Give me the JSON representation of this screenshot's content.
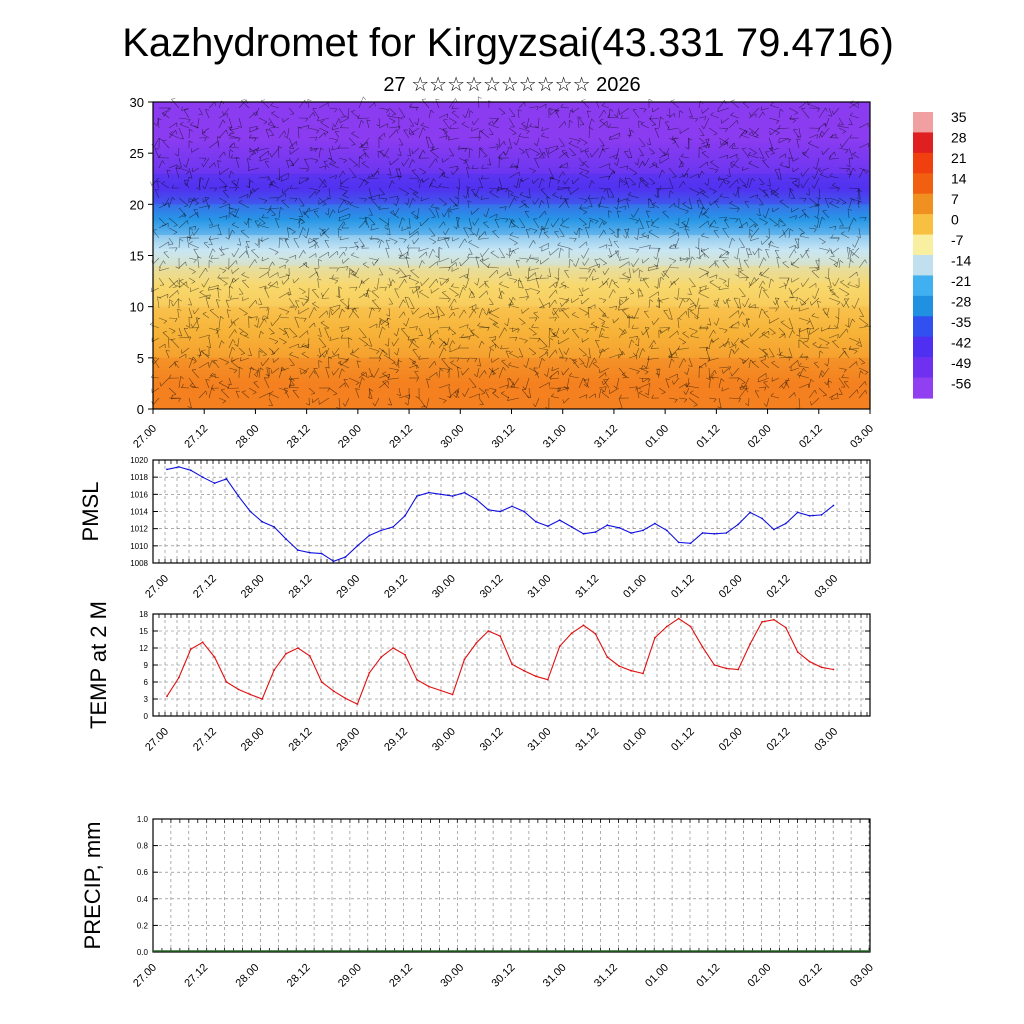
{
  "figure": {
    "title": "Kazhydromet for Kirgyzsai(43.331 79.4716)",
    "subtitle": "27 ☆☆☆☆☆☆☆☆☆☆ 2026"
  },
  "colorbar": {
    "labels": [
      "35",
      "28",
      "21",
      "14",
      "7",
      "0",
      "-7",
      "-14",
      "-21",
      "-28",
      "-35",
      "-42",
      "-49",
      "-56"
    ],
    "colors": [
      "#f0a0a0",
      "#e02020",
      "#f04010",
      "#f06010",
      "#f09020",
      "#f8c040",
      "#f8f0a0",
      "#c0e0f0",
      "#40b0f0",
      "#2090e0",
      "#3050f0",
      "#5030f0",
      "#7030f0",
      "#9040f0"
    ]
  },
  "chart_data": [
    {
      "type": "heatmap",
      "name": "cross-section",
      "title": "",
      "ylim": [
        0,
        30
      ],
      "yticks": [
        "0",
        "5",
        "10",
        "15",
        "20",
        "25",
        "30"
      ],
      "xticks": [
        "27.00",
        "27.12",
        "28.00",
        "28.12",
        "29.00",
        "29.12",
        "30.00",
        "30.12",
        "31.00",
        "31.12",
        "01.00",
        "01.12",
        "02.00",
        "02.12",
        "03.00"
      ],
      "bands": [
        {
          "y_from": 0,
          "y_to": 5,
          "value": 10
        },
        {
          "y_from": 5,
          "y_to": 10,
          "value": 3
        },
        {
          "y_from": 10,
          "y_to": 14,
          "value": -3
        },
        {
          "y_from": 14,
          "y_to": 17,
          "value": -14
        },
        {
          "y_from": 17,
          "y_to": 20,
          "value": -28
        },
        {
          "y_from": 20,
          "y_to": 23,
          "value": -42
        },
        {
          "y_from": 23,
          "y_to": 30,
          "value": -56
        }
      ]
    },
    {
      "type": "line",
      "name": "pmsl",
      "ylabel": "PMSL",
      "ylim": [
        1008,
        1020
      ],
      "yticks": [
        "1008",
        "1010",
        "1012",
        "1014",
        "1016",
        "1018",
        "1020"
      ],
      "xticks": [
        "27.00",
        "27.12",
        "28.00",
        "28.12",
        "29.00",
        "29.12",
        "30.00",
        "30.12",
        "31.00",
        "31.12",
        "01.00",
        "01.12",
        "02.00",
        "02.12",
        "03.00"
      ],
      "color": "#1010e0",
      "values": [
        1018.9,
        1019.2,
        1018.8,
        1018.0,
        1017.3,
        1017.8,
        1015.8,
        1014.0,
        1012.8,
        1012.2,
        1010.8,
        1009.5,
        1009.2,
        1009.1,
        1008.2,
        1008.7,
        1010.0,
        1011.2,
        1011.8,
        1012.2,
        1013.5,
        1015.8,
        1016.2,
        1016.0,
        1015.8,
        1016.2,
        1015.4,
        1014.2,
        1014.0,
        1014.6,
        1014.0,
        1012.8,
        1012.3,
        1013.0,
        1012.2,
        1011.4,
        1011.6,
        1012.4,
        1012.1,
        1011.5,
        1011.8,
        1012.6,
        1011.8,
        1010.4,
        1010.3,
        1011.5,
        1011.4,
        1011.5,
        1012.5,
        1013.9,
        1013.2,
        1011.9,
        1012.6,
        1013.9,
        1013.5,
        1013.6,
        1014.7
      ]
    },
    {
      "type": "line",
      "name": "temp",
      "ylabel": "TEMP at 2 M",
      "ylim": [
        0,
        18
      ],
      "yticks": [
        "0",
        "3",
        "6",
        "9",
        "12",
        "15",
        "18"
      ],
      "xticks": [
        "27.00",
        "27.12",
        "28.00",
        "28.12",
        "29.00",
        "29.12",
        "30.00",
        "30.12",
        "31.00",
        "31.12",
        "01.00",
        "01.12",
        "02.00",
        "02.12",
        "03.00"
      ],
      "color": "#e01010",
      "values": [
        3.5,
        6.8,
        11.8,
        13.0,
        10.4,
        6.0,
        4.7,
        3.8,
        3.0,
        8.1,
        11.0,
        12.0,
        10.6,
        6.0,
        4.4,
        3.1,
        2.1,
        7.6,
        10.4,
        12.0,
        10.8,
        6.4,
        5.2,
        4.5,
        3.8,
        10.0,
        12.9,
        15.0,
        14.1,
        9.1,
        8.0,
        7.0,
        6.4,
        12.3,
        14.6,
        16.0,
        14.5,
        10.4,
        8.8,
        8.0,
        7.5,
        13.8,
        15.8,
        17.2,
        15.8,
        12.2,
        9.0,
        8.4,
        8.2,
        12.7,
        16.6,
        17.0,
        15.6,
        11.3,
        9.6,
        8.6,
        8.2
      ]
    },
    {
      "type": "bar",
      "name": "precip",
      "ylabel": "PRECIP, mm",
      "ylim": [
        0,
        1
      ],
      "yticks": [
        "0.0",
        "0.2",
        "0.4",
        "0.6",
        "0.8",
        "1.0"
      ],
      "xticks": [
        "27.00",
        "27.12",
        "28.00",
        "28.12",
        "29.00",
        "29.12",
        "30.00",
        "30.12",
        "31.00",
        "31.12",
        "01.00",
        "01.12",
        "02.00",
        "02.12",
        "03.00"
      ],
      "values": []
    }
  ]
}
